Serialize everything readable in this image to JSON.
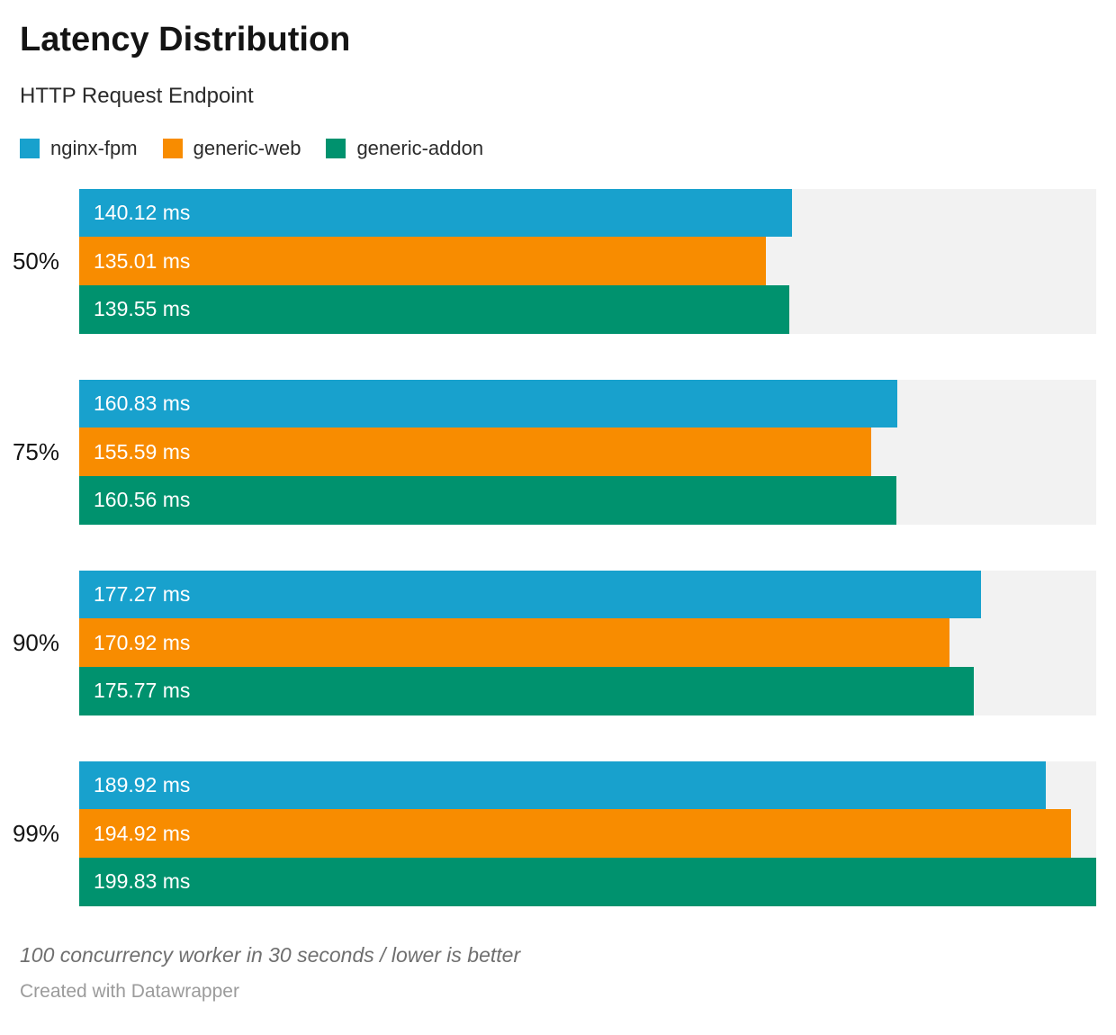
{
  "header": {
    "title": "Latency Distribution",
    "subtitle": "HTTP Request Endpoint"
  },
  "chart_data": {
    "type": "bar",
    "orientation": "horizontal",
    "title": "Latency Distribution",
    "subtitle": "HTTP Request Endpoint",
    "categories": [
      "50%",
      "75%",
      "90%",
      "99%"
    ],
    "series": [
      {
        "name": "nginx-fpm",
        "color": "#18a1cd",
        "values": [
          140.12,
          160.83,
          177.27,
          189.92
        ],
        "labels": [
          "140.12 ms",
          "160.83 ms",
          "177.27 ms",
          "189.92 ms"
        ]
      },
      {
        "name": "generic-web",
        "color": "#f88c00",
        "values": [
          135.01,
          155.59,
          170.92,
          194.92
        ],
        "labels": [
          "135.01 ms",
          "155.59 ms",
          "170.92 ms",
          "194.92 ms"
        ]
      },
      {
        "name": "generic-addon",
        "color": "#00926e",
        "values": [
          139.55,
          160.56,
          175.77,
          199.83
        ],
        "labels": [
          "139.55 ms",
          "160.56 ms",
          "175.77 ms",
          "199.83 ms"
        ]
      }
    ],
    "unit": "ms",
    "axis_max": 199.83,
    "track_color": "#f2f2f2",
    "value_label_color": "#ffffff",
    "legend_position": "top",
    "grid": false
  },
  "footer": {
    "note": "100 concurrency worker in 30 seconds / lower is better",
    "credit": "Created with Datawrapper"
  }
}
